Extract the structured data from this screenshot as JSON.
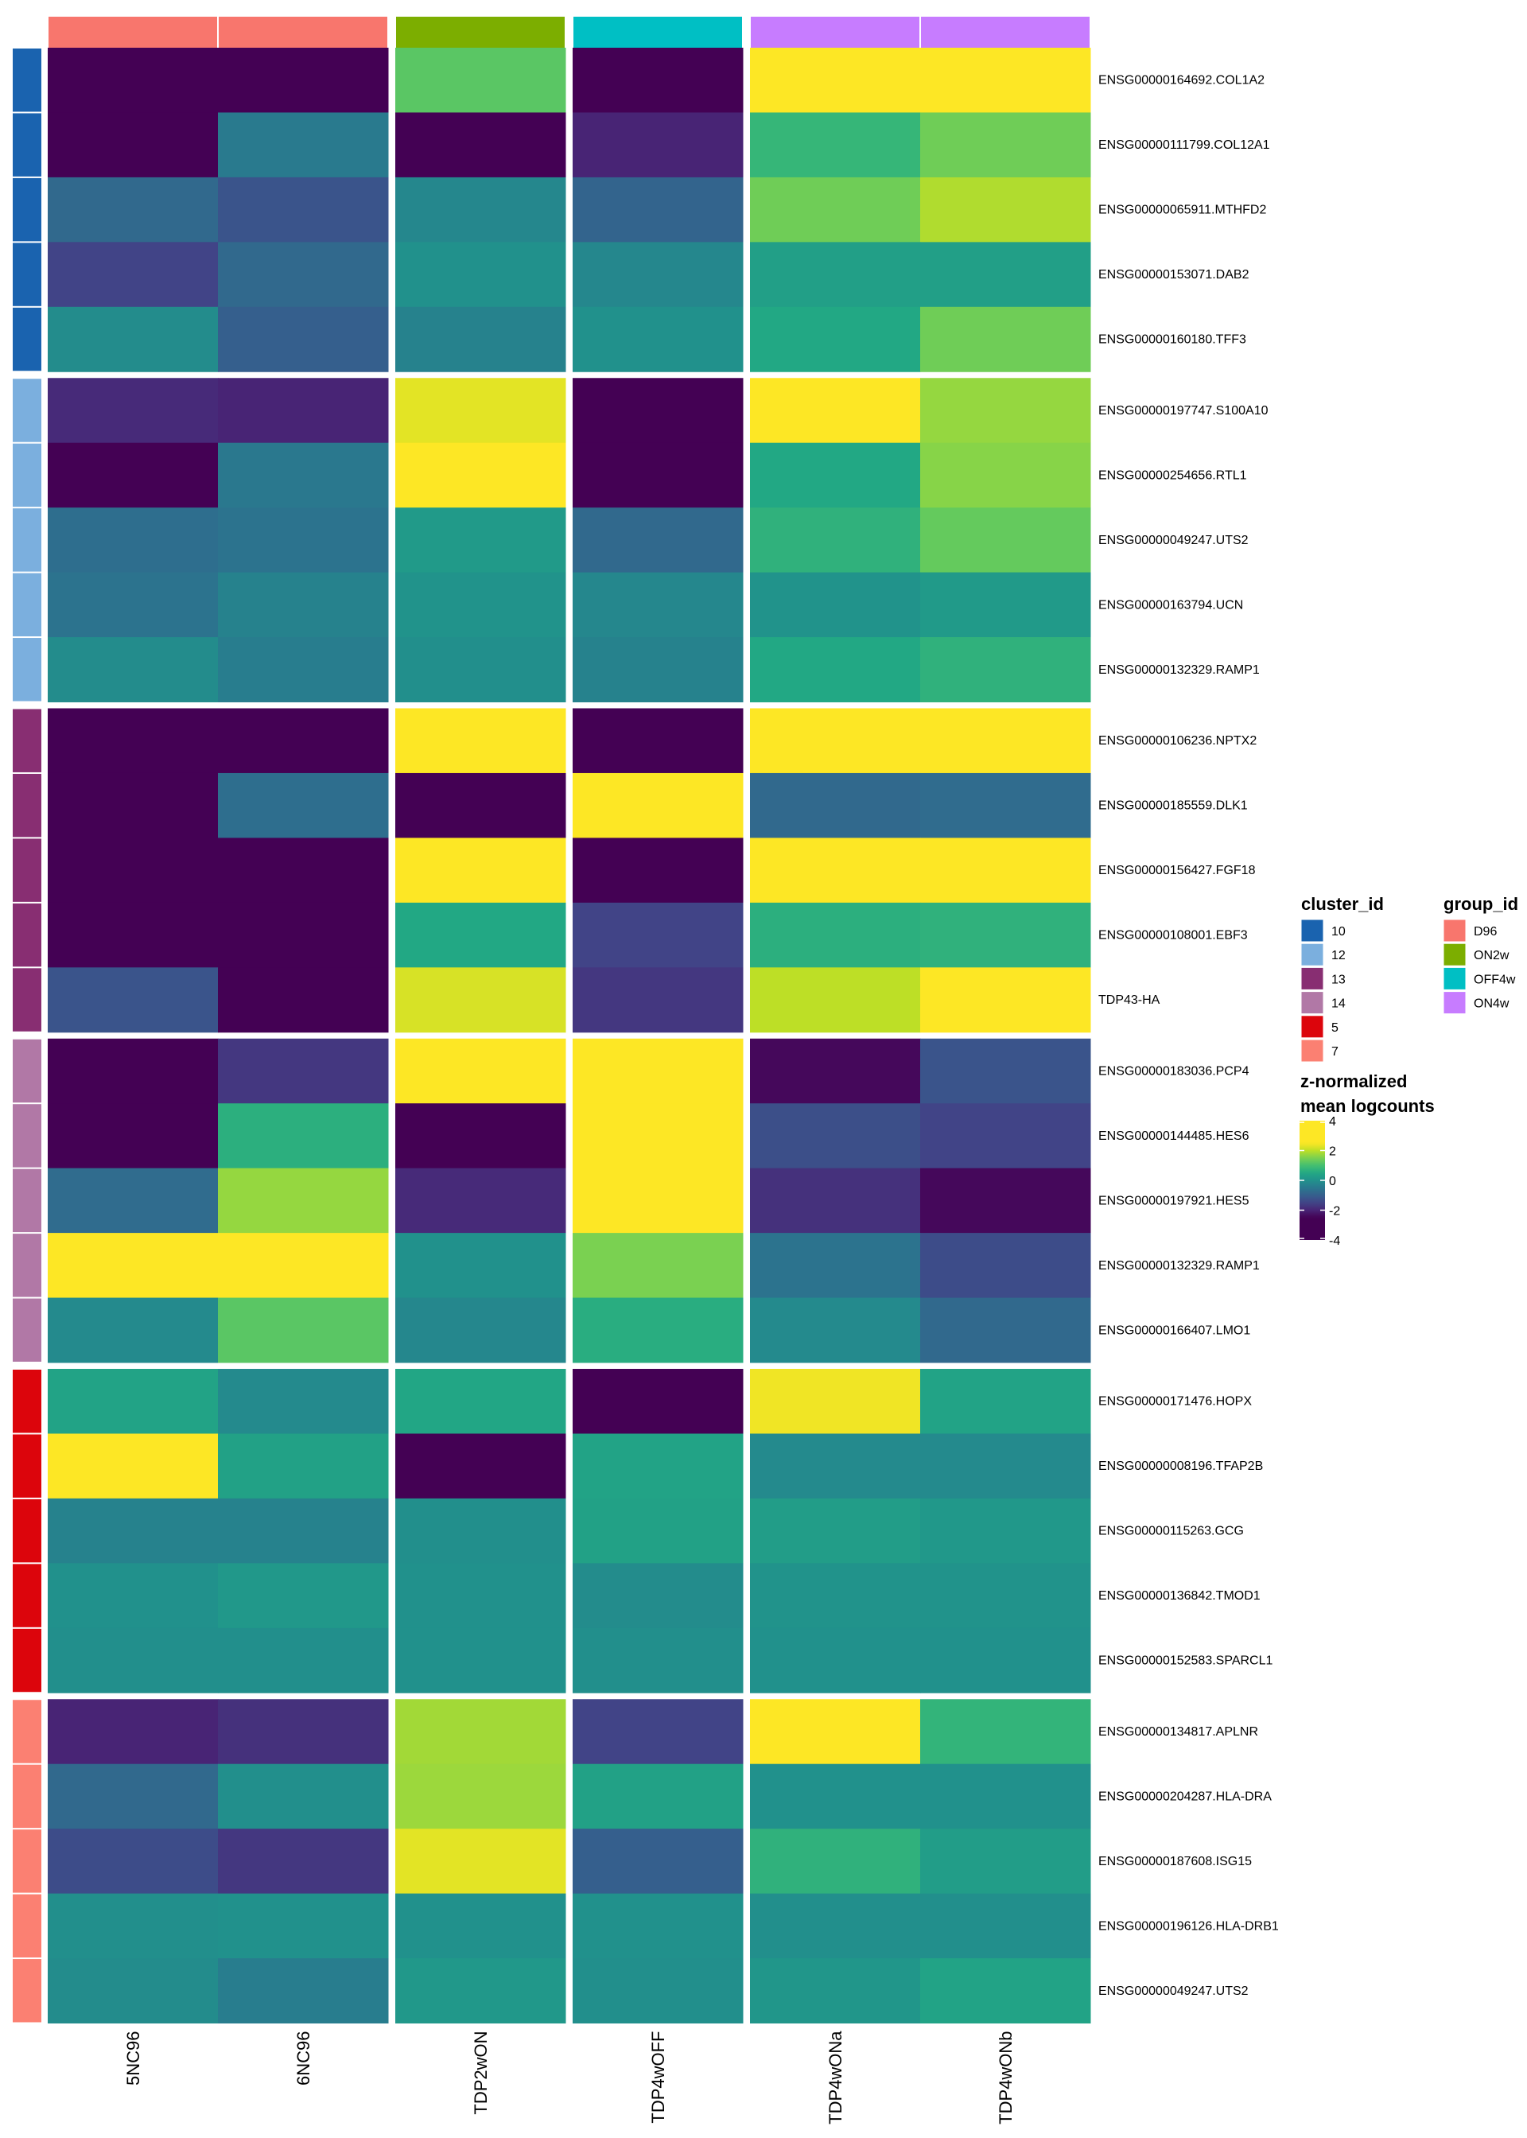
{
  "chart_data": {
    "type": "heatmap",
    "title": "",
    "columns": [
      "5NC96",
      "6NC96",
      "TDP2wON",
      "TDP4wOFF",
      "TDP4wONa",
      "TDP4wONb"
    ],
    "column_groups": [
      "D96",
      "D96",
      "ON2w",
      "OFF4w",
      "ON4w",
      "ON4w"
    ],
    "column_splits": [
      [
        "5NC96",
        "6NC96"
      ],
      [
        "TDP2wON"
      ],
      [
        "TDP4wOFF"
      ],
      [
        "TDP4wONa",
        "TDP4wONb"
      ]
    ],
    "row_blocks": [
      {
        "cluster_id": "10",
        "rows": [
          {
            "gene": "ENSG00000164692.COL1A2",
            "values": [
              -4.0,
              -4.0,
              1.2,
              -4.0,
              4.0,
              4.0
            ]
          },
          {
            "gene": "ENSG00000111799.COL12A1",
            "values": [
              -4.0,
              -0.45,
              -4.0,
              -2.0,
              0.8,
              1.4
            ]
          },
          {
            "gene": "ENSG00000065911.MTHFD2",
            "values": [
              -0.8,
              -1.2,
              -0.2,
              -0.9,
              1.4,
              1.9
            ]
          },
          {
            "gene": "ENSG00000153071.DAB2",
            "values": [
              -1.5,
              -0.8,
              0.0,
              -0.2,
              0.3,
              0.3
            ]
          },
          {
            "gene": "ENSG00000160180.TFF3",
            "values": [
              -0.1,
              -1.0,
              -0.3,
              0.0,
              0.5,
              1.4
            ]
          }
        ]
      },
      {
        "cluster_id": "12",
        "rows": [
          {
            "gene": "ENSG00000197747.S100A10",
            "values": [
              -1.9,
              -2.0,
              2.3,
              -4.0,
              4.0,
              1.7
            ]
          },
          {
            "gene": "ENSG00000254656.RTL1",
            "values": [
              -4.0,
              -0.5,
              4.0,
              -4.0,
              0.5,
              1.6
            ]
          },
          {
            "gene": "ENSG00000049247.UTS2",
            "values": [
              -0.7,
              -0.6,
              0.2,
              -0.8,
              0.7,
              1.3
            ]
          },
          {
            "gene": "ENSG00000163794.UCN",
            "values": [
              -0.6,
              -0.3,
              0.05,
              -0.2,
              0.05,
              0.2
            ]
          },
          {
            "gene": "ENSG00000132329.RAMP1",
            "values": [
              -0.1,
              -0.4,
              -0.05,
              -0.3,
              0.5,
              0.7
            ]
          }
        ]
      },
      {
        "cluster_id": "13",
        "rows": [
          {
            "gene": "ENSG00000106236.NPTX2",
            "values": [
              -4.0,
              -4.0,
              4.0,
              -4.0,
              4.0,
              4.0
            ]
          },
          {
            "gene": "ENSG00000185559.DLK1",
            "values": [
              -4.0,
              -0.7,
              -4.0,
              4.0,
              -0.8,
              -0.75
            ]
          },
          {
            "gene": "ENSG00000156427.FGF18",
            "values": [
              -4.0,
              -4.0,
              4.0,
              -4.0,
              4.0,
              4.0
            ]
          },
          {
            "gene": "ENSG00000108001.EBF3",
            "values": [
              -4.0,
              -4.0,
              0.5,
              -1.5,
              0.65,
              0.7
            ]
          },
          {
            "gene": "TDP43-HA",
            "values": [
              -1.2,
              -4.0,
              2.2,
              -1.7,
              2.0,
              4.0
            ]
          }
        ]
      },
      {
        "cluster_id": "14",
        "rows": [
          {
            "gene": "ENSG00000183036.PCP4",
            "values": [
              -4.0,
              -1.7,
              4.0,
              4.0,
              -2.4,
              -1.2
            ]
          },
          {
            "gene": "ENSG00000144485.HES6",
            "values": [
              -4.0,
              0.65,
              -4.0,
              4.0,
              -1.3,
              -1.5
            ]
          },
          {
            "gene": "ENSG00000197921.HES5",
            "values": [
              -0.75,
              1.7,
              -1.9,
              4.0,
              -1.8,
              -2.4
            ]
          },
          {
            "gene": "ENSG00000132329.RAMP1",
            "values": [
              4.0,
              4.0,
              0.0,
              1.5,
              -0.6,
              -1.35
            ]
          },
          {
            "gene": "ENSG00000166407.LMO1",
            "values": [
              -0.15,
              1.2,
              -0.2,
              0.6,
              -0.15,
              -0.8
            ]
          }
        ]
      },
      {
        "cluster_id": "5",
        "rows": [
          {
            "gene": "ENSG00000171476.HOPX",
            "values": [
              0.4,
              -0.15,
              0.45,
              -4.0,
              2.4,
              0.4
            ]
          },
          {
            "gene": "ENSG00000008196.TFAP2B",
            "values": [
              4.0,
              0.35,
              -4.0,
              0.4,
              -0.15,
              -0.15
            ]
          },
          {
            "gene": "ENSG00000115263.GCG",
            "values": [
              -0.3,
              -0.3,
              -0.05,
              0.35,
              0.25,
              0.15
            ]
          },
          {
            "gene": "ENSG00000136842.TMOD1",
            "values": [
              0.0,
              0.15,
              0.0,
              -0.1,
              0.05,
              0.05
            ]
          },
          {
            "gene": "ENSG00000152583.SPARCL1",
            "values": [
              -0.05,
              -0.05,
              0.0,
              -0.05,
              0.0,
              0.0
            ]
          }
        ]
      },
      {
        "cluster_id": "7",
        "rows": [
          {
            "gene": "ENSG00000134817.APLNR",
            "values": [
              -2.0,
              -1.8,
              1.8,
              -1.5,
              4.0,
              0.75
            ]
          },
          {
            "gene": "ENSG00000204287.HLA-DRA",
            "values": [
              -0.8,
              -0.05,
              1.75,
              0.35,
              0.0,
              0.0
            ]
          },
          {
            "gene": "ENSG00000187608.ISG15",
            "values": [
              -1.35,
              -1.7,
              2.3,
              -1.0,
              0.7,
              0.25
            ]
          },
          {
            "gene": "ENSG00000196126.HLA-DRB1",
            "values": [
              -0.05,
              0.0,
              0.0,
              0.0,
              -0.05,
              -0.05
            ]
          },
          {
            "gene": "ENSG00000049247.UTS2",
            "values": [
              -0.1,
              -0.4,
              0.15,
              -0.05,
              0.1,
              0.4
            ]
          }
        ]
      }
    ],
    "color_scale": {
      "name": "viridis",
      "title": "z-normalized\nmean logcounts",
      "title_lines": [
        "z-normalized",
        "mean logcounts"
      ],
      "ticks": [
        4,
        2,
        0,
        -2,
        -4
      ],
      "range": [
        -4,
        4
      ],
      "saturation": [
        -2.5,
        2.5
      ]
    },
    "legends": [
      {
        "title": "cluster_id",
        "entries": [
          {
            "label": "10",
            "color": "#1A63AF"
          },
          {
            "label": "12",
            "color": "#7BAFDE"
          },
          {
            "label": "13",
            "color": "#882E72"
          },
          {
            "label": "14",
            "color": "#B178A6"
          },
          {
            "label": "5",
            "color": "#DC050C"
          },
          {
            "label": "7",
            "color": "#FB8072"
          }
        ]
      },
      {
        "title": "group_id",
        "entries": [
          {
            "label": "D96",
            "color": "#F8766D"
          },
          {
            "label": "ON2w",
            "color": "#7CAE00"
          },
          {
            "label": "OFF4w",
            "color": "#00BFC4"
          },
          {
            "label": "ON4w",
            "color": "#C77CFF"
          }
        ]
      }
    ],
    "xlabel": "",
    "ylabel": ""
  }
}
